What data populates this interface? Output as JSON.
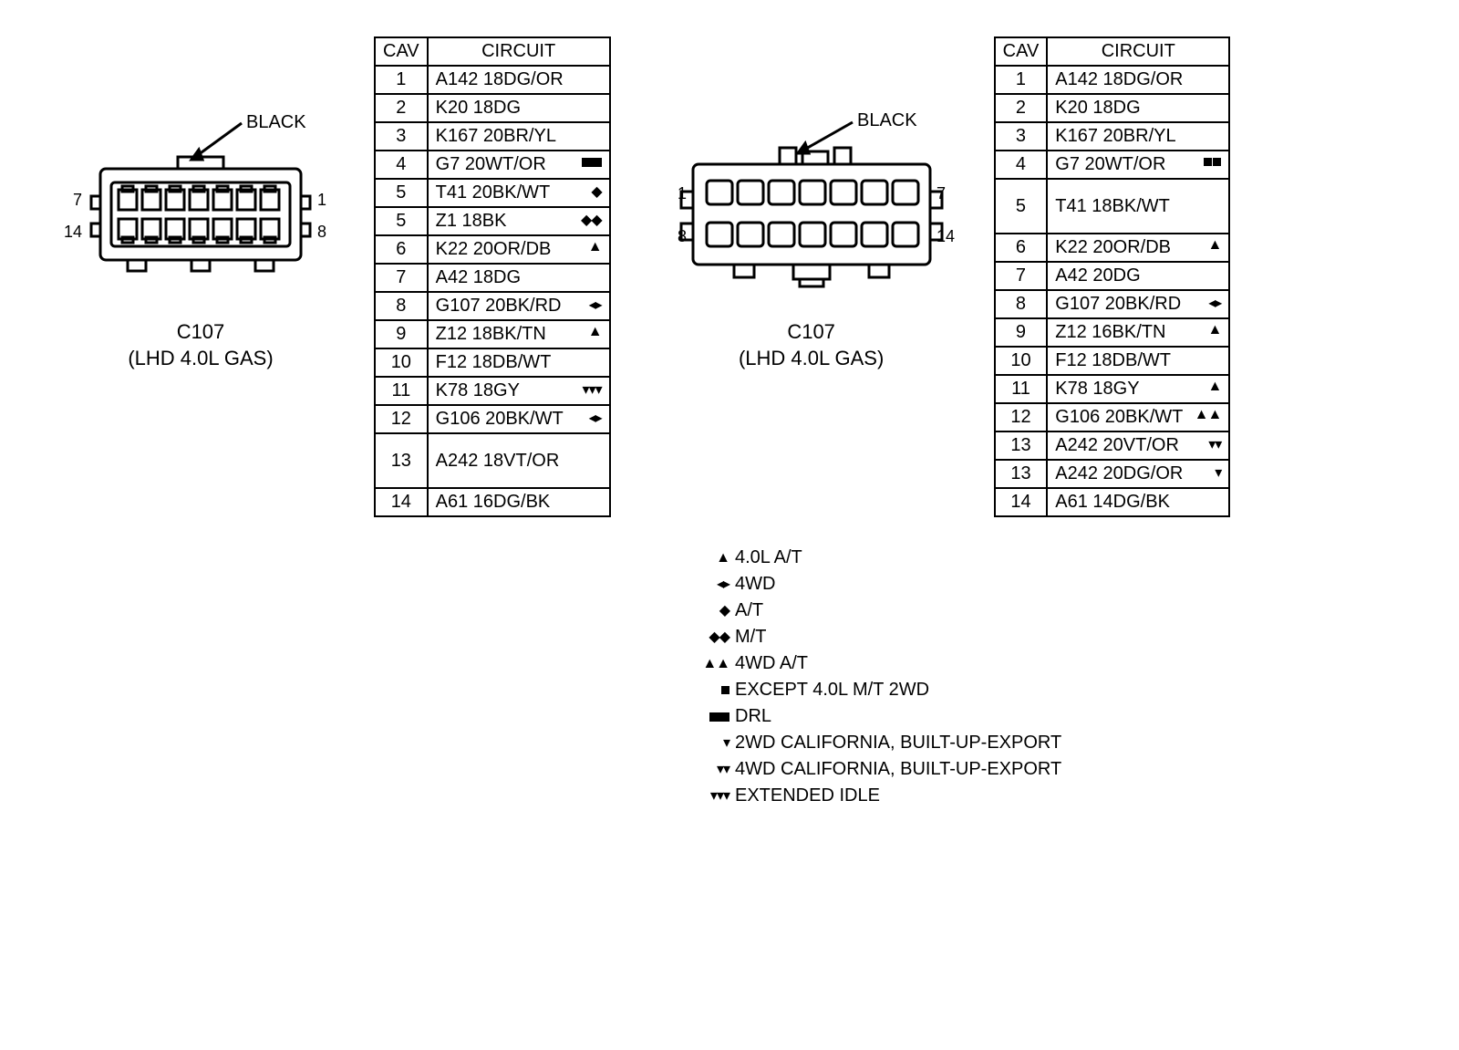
{
  "connectors": {
    "left": {
      "color_label": "BLACK",
      "name": "C107",
      "subtitle": "(LHD 4.0L GAS)",
      "pin_labels": {
        "tl": "7",
        "bl": "14",
        "tr": "1",
        "br": "8"
      }
    },
    "right": {
      "color_label": "BLACK",
      "name": "C107",
      "subtitle": "(LHD 4.0L GAS)",
      "pin_labels": {
        "tl": "1",
        "bl": "8",
        "tr": "7",
        "br": "14"
      }
    }
  },
  "tables": {
    "left": {
      "headers": {
        "cav": "CAV",
        "circuit": "CIRCUIT"
      },
      "rows": [
        {
          "cav": "1",
          "circuit": "A142 18DG/OR",
          "sym": ""
        },
        {
          "cav": "2",
          "circuit": "K20 18DG",
          "sym": ""
        },
        {
          "cav": "3",
          "circuit": "K167 20BR/YL",
          "sym": ""
        },
        {
          "cav": "4",
          "circuit": "G7 20WT/OR",
          "sym": "drl"
        },
        {
          "cav": "5",
          "circuit": "T41 20BK/WT",
          "sym": "◆"
        },
        {
          "cav": "5",
          "circuit": "Z1 18BK",
          "sym": "◆◆"
        },
        {
          "cav": "6",
          "circuit": "K22 20OR/DB",
          "sym": "▲"
        },
        {
          "cav": "7",
          "circuit": "A42 18DG",
          "sym": ""
        },
        {
          "cav": "8",
          "circuit": "G107 20BK/RD",
          "sym": "◂▸"
        },
        {
          "cav": "9",
          "circuit": "Z12 18BK/TN",
          "sym": "▲"
        },
        {
          "cav": "10",
          "circuit": "F12 18DB/WT",
          "sym": ""
        },
        {
          "cav": "11",
          "circuit": "K78 18GY",
          "sym": "▾▾▾"
        },
        {
          "cav": "12",
          "circuit": "G106 20BK/WT",
          "sym": "◂▸"
        },
        {
          "cav": "13",
          "circuit": "A242 18VT/OR",
          "sym": "",
          "tall": true
        },
        {
          "cav": "14",
          "circuit": "A61 16DG/BK",
          "sym": ""
        }
      ]
    },
    "right": {
      "headers": {
        "cav": "CAV",
        "circuit": "CIRCUIT"
      },
      "rows": [
        {
          "cav": "1",
          "circuit": "A142 18DG/OR",
          "sym": ""
        },
        {
          "cav": "2",
          "circuit": "K20 18DG",
          "sym": ""
        },
        {
          "cav": "3",
          "circuit": "K167 20BR/YL",
          "sym": ""
        },
        {
          "cav": "4",
          "circuit": "G7 20WT/OR",
          "sym": "sq2"
        },
        {
          "cav": "5",
          "circuit": "T41 18BK/WT",
          "sym": "",
          "tall": true
        },
        {
          "cav": "6",
          "circuit": "K22 20OR/DB",
          "sym": "▲"
        },
        {
          "cav": "7",
          "circuit": "A42 20DG",
          "sym": ""
        },
        {
          "cav": "8",
          "circuit": "G107 20BK/RD",
          "sym": "◂▸"
        },
        {
          "cav": "9",
          "circuit": "Z12 16BK/TN",
          "sym": "▲"
        },
        {
          "cav": "10",
          "circuit": "F12 18DB/WT",
          "sym": ""
        },
        {
          "cav": "11",
          "circuit": "K78 18GY",
          "sym": "▲"
        },
        {
          "cav": "12",
          "circuit": "G106 20BK/WT",
          "sym": "▲▲"
        },
        {
          "cav": "13",
          "circuit": "A242 20VT/OR",
          "sym": "▾▾"
        },
        {
          "cav": "13",
          "circuit": "A242 20DG/OR",
          "sym": "▾"
        },
        {
          "cav": "14",
          "circuit": "A61 14DG/BK",
          "sym": ""
        }
      ]
    }
  },
  "legend": [
    {
      "sym": "▲",
      "text": "4.0L A/T"
    },
    {
      "sym": "◂▸",
      "text": "4WD"
    },
    {
      "sym": "◆",
      "text": "A/T"
    },
    {
      "sym": "◆◆",
      "text": "M/T"
    },
    {
      "sym": "▲▲",
      "text": "4WD A/T"
    },
    {
      "sym": "sq",
      "text": "EXCEPT 4.0L M/T 2WD"
    },
    {
      "sym": "drl",
      "text": "DRL"
    },
    {
      "sym": "▾",
      "text": "2WD CALIFORNIA, BUILT-UP-EXPORT"
    },
    {
      "sym": "▾▾",
      "text": "4WD CALIFORNIA, BUILT-UP-EXPORT"
    },
    {
      "sym": "▾▾▾",
      "text": "EXTENDED IDLE"
    }
  ]
}
